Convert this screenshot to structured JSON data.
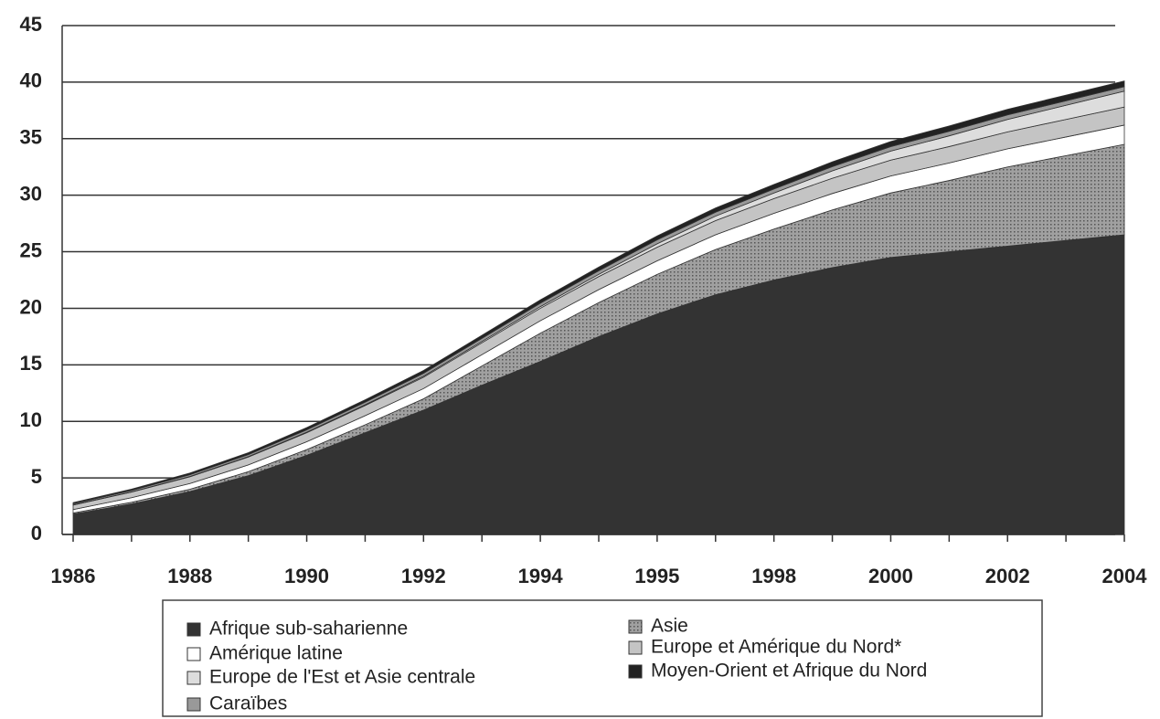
{
  "chart_data": {
    "type": "stacked_area",
    "categories": [
      "1986",
      null,
      "1988",
      null,
      "1990",
      null,
      "1992",
      null,
      "1994",
      null,
      "1995",
      null,
      "1998",
      null,
      "2000",
      null,
      "2002",
      null,
      "2004"
    ],
    "ylim": [
      0,
      45
    ],
    "yticks": [
      0,
      5,
      10,
      15,
      20,
      25,
      30,
      35,
      40,
      45
    ],
    "grid": true,
    "series": [
      {
        "name": "Afrique sub-saharienne",
        "color": "#333333",
        "values": [
          1.8,
          2.7,
          3.8,
          5.2,
          7,
          9,
          11,
          13.2,
          15.3,
          17.5,
          19.5,
          21.2,
          22.5,
          23.6,
          24.5,
          25,
          25.5,
          26,
          26.5
        ]
      },
      {
        "name": "Asie",
        "color": "#8a8a8a",
        "values": [
          0.1,
          0.15,
          0.2,
          0.35,
          0.5,
          0.7,
          1,
          1.7,
          2.5,
          3,
          3.5,
          4,
          4.5,
          5.1,
          5.7,
          6.3,
          7,
          7.5,
          8
        ]
      },
      {
        "name": "Amérique latine",
        "color": "#ffffff",
        "values": [
          0.3,
          0.4,
          0.5,
          0.6,
          0.7,
          0.8,
          0.9,
          1,
          1.1,
          1.15,
          1.2,
          1.3,
          1.4,
          1.45,
          1.5,
          1.55,
          1.6,
          1.65,
          1.7
        ]
      },
      {
        "name": "Europe et Amérique du Nord*",
        "color": "#c4c4c4",
        "values": [
          0.4,
          0.5,
          0.6,
          0.7,
          0.8,
          0.9,
          1,
          1.05,
          1.1,
          1.15,
          1.2,
          1.25,
          1.3,
          1.35,
          1.4,
          1.45,
          1.5,
          1.55,
          1.6
        ]
      },
      {
        "name": "Europe de l'Est et Asie centrale",
        "color": "#dddddd",
        "values": [
          0.02,
          0.02,
          0.03,
          0.04,
          0.05,
          0.07,
          0.1,
          0.12,
          0.15,
          0.2,
          0.3,
          0.4,
          0.5,
          0.65,
          0.8,
          0.95,
          1.1,
          1.25,
          1.4
        ]
      },
      {
        "name": "Caraïbes",
        "color": "#999999",
        "values": [
          0.1,
          0.12,
          0.15,
          0.17,
          0.2,
          0.22,
          0.25,
          0.27,
          0.3,
          0.32,
          0.35,
          0.35,
          0.35,
          0.38,
          0.4,
          0.4,
          0.4,
          0.4,
          0.4
        ]
      },
      {
        "name": "Moyen-Orient et Afrique du Nord",
        "color": "#222222",
        "values": [
          0.1,
          0.12,
          0.15,
          0.17,
          0.2,
          0.22,
          0.25,
          0.27,
          0.3,
          0.32,
          0.35,
          0.37,
          0.4,
          0.42,
          0.45,
          0.47,
          0.5,
          0.5,
          0.5
        ]
      }
    ]
  }
}
